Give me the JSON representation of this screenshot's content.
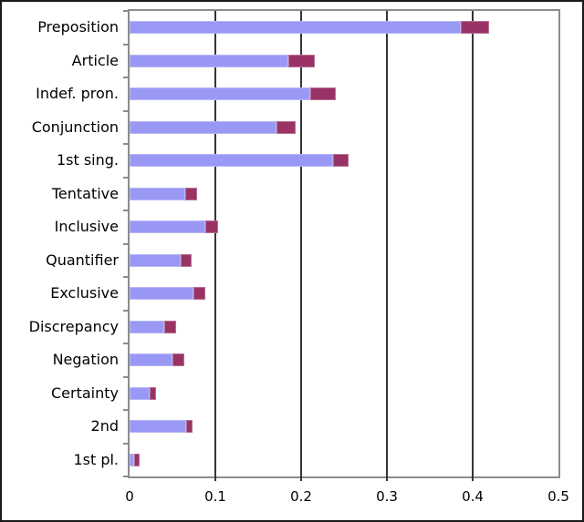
{
  "figure": {
    "background": "#ffffff",
    "outer_border_color": "#1a1a1a",
    "plot_frame_color": "#8c8c8c",
    "gridline_color": "#353535",
    "text_color": "#000000"
  },
  "chart_data": {
    "type": "bar",
    "orientation": "horizontal",
    "stacked": true,
    "title": "",
    "xlabel": "",
    "ylabel": "",
    "legend": "none",
    "grid": "vertical gridlines every 0.1",
    "xlim": [
      0,
      0.5
    ],
    "categories": [
      "Preposition",
      "Article",
      "Indef. pron.",
      "Conjunction",
      "1st sing.",
      "Tentative",
      "Inclusive",
      "Quantifier",
      "Exclusive",
      "Discrepancy",
      "Negation",
      "Certainty",
      "2nd",
      "1st pl."
    ],
    "series": [
      {
        "name": "blue-base-segment",
        "color": "#9999F5",
        "values": [
          0.386,
          0.185,
          0.211,
          0.171,
          0.237,
          0.065,
          0.088,
          0.06,
          0.074,
          0.04,
          0.05,
          0.023,
          0.066,
          0.005
        ]
      },
      {
        "name": "plum-tip-segment",
        "color": "#993366",
        "values": [
          0.033,
          0.031,
          0.029,
          0.023,
          0.018,
          0.014,
          0.015,
          0.012,
          0.014,
          0.014,
          0.014,
          0.008,
          0.007,
          0.007
        ]
      }
    ],
    "totals": [
      0.419,
      0.216,
      0.24,
      0.194,
      0.255,
      0.079,
      0.103,
      0.072,
      0.088,
      0.054,
      0.064,
      0.031,
      0.073,
      0.012
    ],
    "x_ticks": [
      {
        "label": "0",
        "value": 0.0
      },
      {
        "label": "0.1",
        "value": 0.1
      },
      {
        "label": "0.2",
        "value": 0.2
      },
      {
        "label": "0.3",
        "value": 0.3
      },
      {
        "label": "0.4",
        "value": 0.4
      },
      {
        "label": "0.5",
        "value": 0.5
      }
    ]
  }
}
